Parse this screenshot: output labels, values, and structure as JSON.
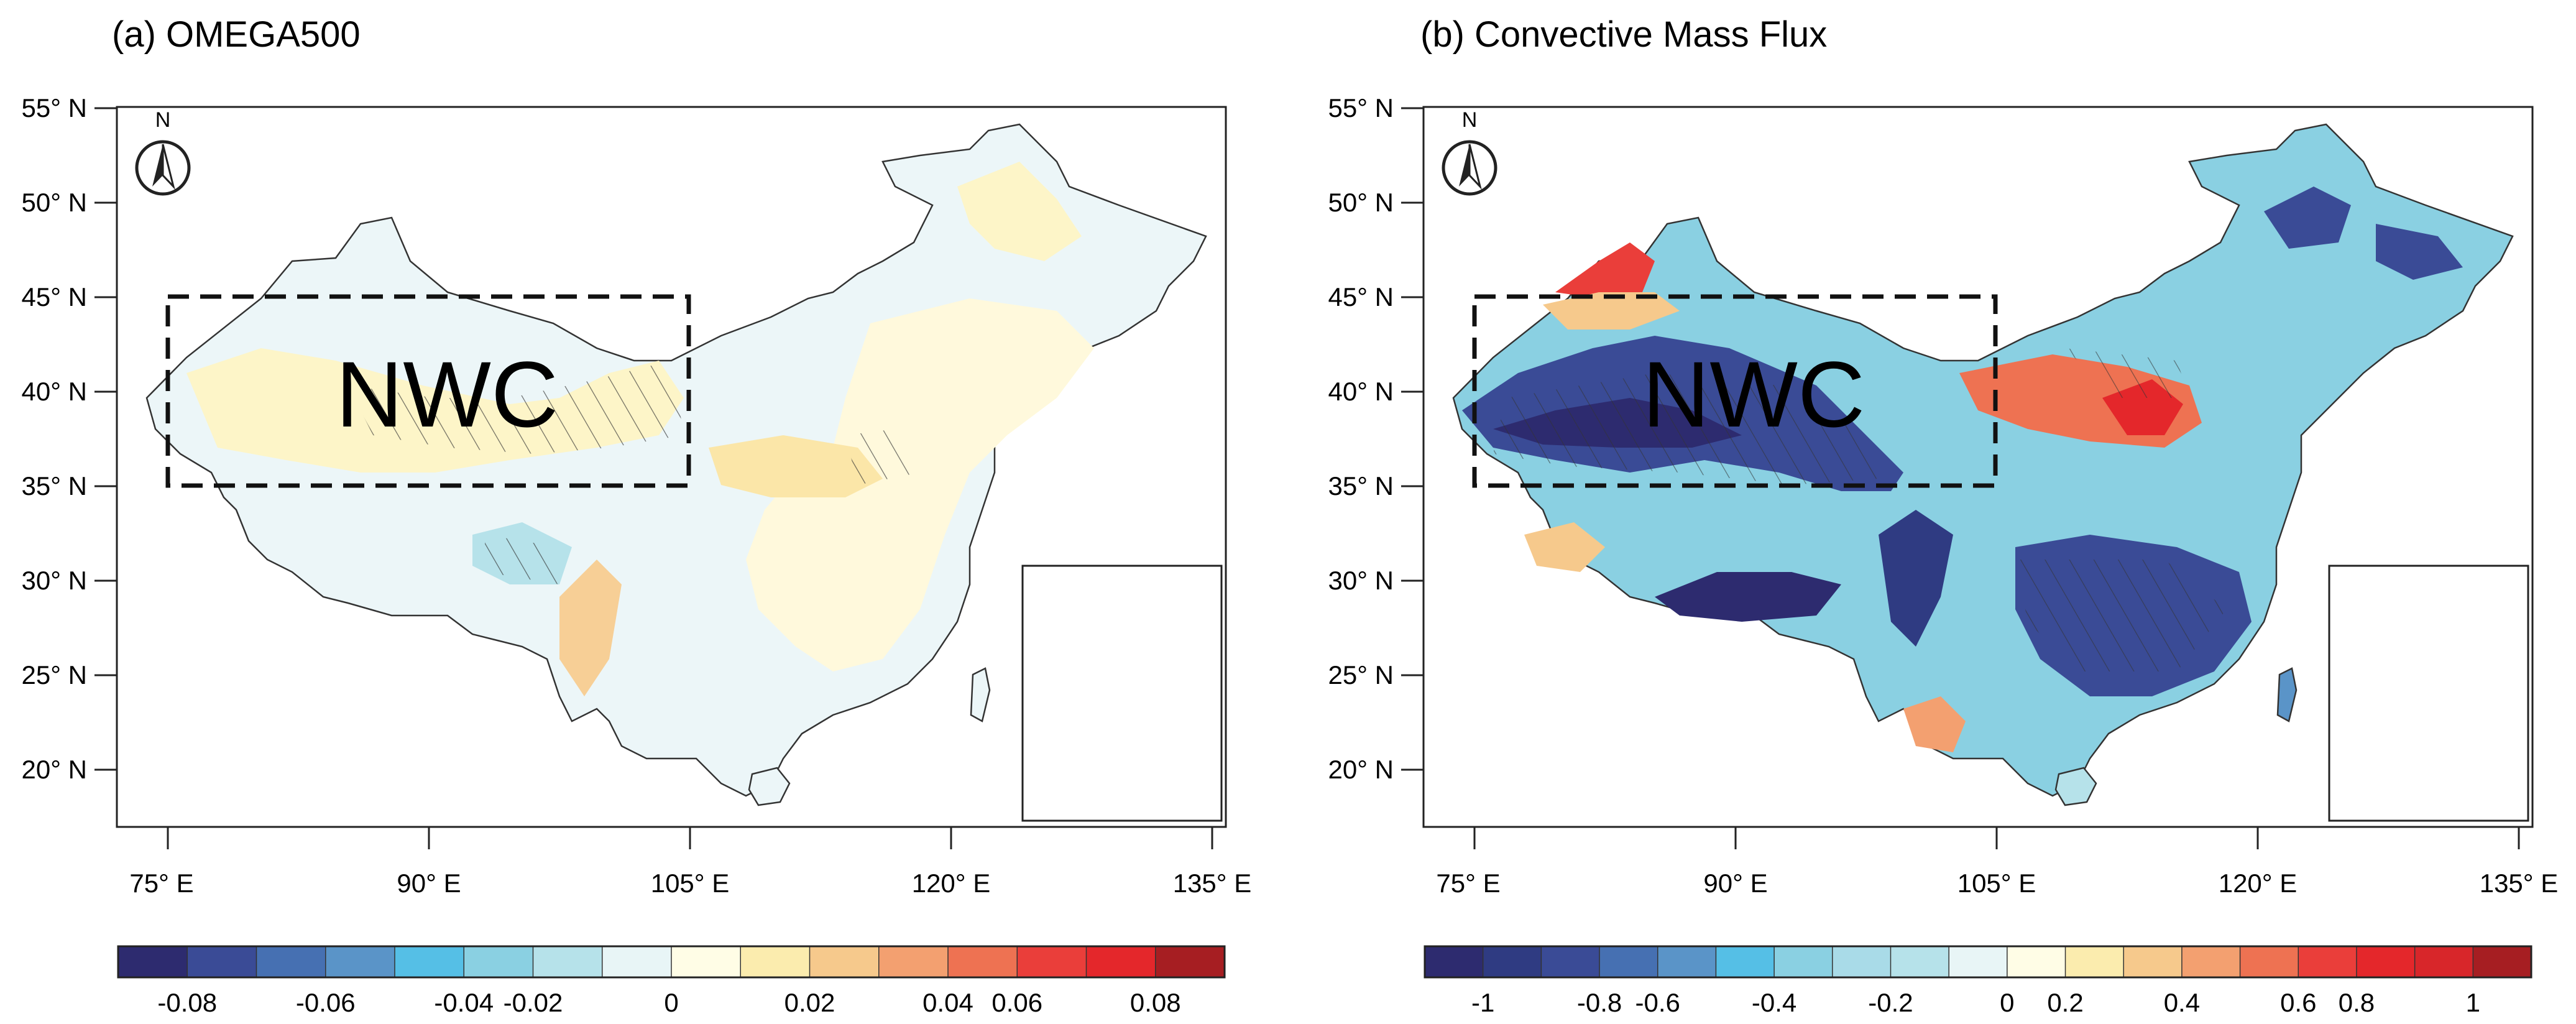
{
  "panels": [
    {
      "id": "a",
      "title": "(a) OMEGA500",
      "lat_ticks": [
        "55° N",
        "50° N",
        "45° N",
        "40° N",
        "35° N",
        "30° N",
        "25° N",
        "20° N"
      ],
      "lon_ticks": [
        "75° E",
        "90° E",
        "105° E",
        "120° E",
        "135° E"
      ],
      "region_label": "NWC",
      "compass_label": "N",
      "colorbar": {
        "labels": [
          "-0.08",
          "-0.06",
          "-0.04",
          "-0.02",
          "0",
          "0.02",
          "0.04",
          "0.06",
          "0.08"
        ],
        "colors": [
          "#2d2b6f",
          "#3a4b96",
          "#4670b2",
          "#5a94c8",
          "#55bfe6",
          "#8ad0e2",
          "#b6e2ea",
          "#e8f5f6",
          "#fffde6",
          "#fbecae",
          "#f6c98c",
          "#f3a070",
          "#ee7252",
          "#ea3e3a",
          "#e4272b",
          "#a61e22"
        ]
      }
    },
    {
      "id": "b",
      "title": "(b) Convective Mass Flux",
      "lat_ticks": [
        "55° N",
        "50° N",
        "45° N",
        "40° N",
        "35° N",
        "30° N",
        "25° N",
        "20° N"
      ],
      "lon_ticks": [
        "75° E",
        "90° E",
        "105° E",
        "120° E",
        "135° E"
      ],
      "region_label": "NWC",
      "compass_label": "N",
      "colorbar": {
        "labels": [
          "-1",
          "-0.8",
          "-0.6",
          "-0.4",
          "-0.2",
          "0",
          "0.2",
          "0.4",
          "0.6",
          "0.8",
          "1"
        ],
        "colors": [
          "#2d2b6f",
          "#2f3b82",
          "#3a4b96",
          "#4670b2",
          "#5a94c8",
          "#55bfe6",
          "#8ad0e2",
          "#a9dbe8",
          "#b6e2ea",
          "#e8f5f6",
          "#fffde6",
          "#fbecae",
          "#f6c98c",
          "#f3a070",
          "#ee7252",
          "#ea3e3a",
          "#e4272b",
          "#d8262a",
          "#a61e22"
        ]
      }
    }
  ]
}
